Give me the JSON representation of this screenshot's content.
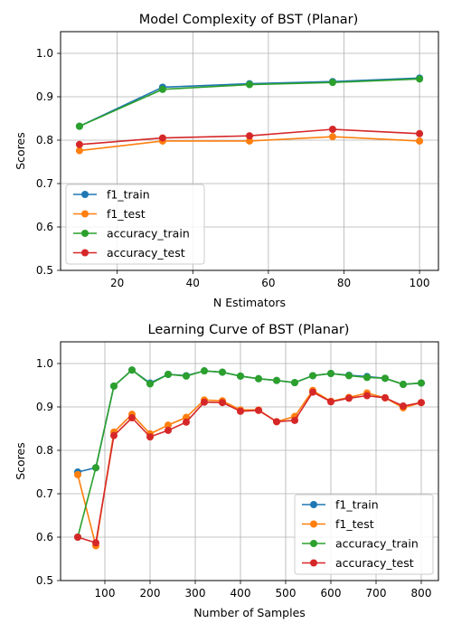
{
  "colors": {
    "f1_train": "#1f77b4",
    "f1_test": "#ff7f0e",
    "accuracy_train": "#2ca02c",
    "accuracy_test": "#d62728",
    "grid": "#b0b0b0",
    "axes": "#000000"
  },
  "chart_data": [
    {
      "type": "line",
      "title": "Model Complexity of BST (Planar)",
      "xlabel": "N Estimators",
      "ylabel": "Scores",
      "xlim": [
        5,
        105
      ],
      "ylim": [
        0.5,
        1.05
      ],
      "xticks": [
        20,
        40,
        60,
        80,
        100
      ],
      "yticks": [
        0.5,
        0.6,
        0.7,
        0.8,
        0.9,
        1.0
      ],
      "x_tick_labels": [
        "20",
        "40",
        "60",
        "80",
        "100"
      ],
      "y_tick_labels": [
        "0.5",
        "0.6",
        "0.7",
        "0.8",
        "0.9",
        "1.0"
      ],
      "grid": true,
      "legend_position": "lower-left",
      "x": [
        10,
        32,
        55,
        77,
        100
      ],
      "series": [
        {
          "name": "f1_train",
          "color_key": "f1_train",
          "values": [
            0.832,
            0.922,
            0.93,
            0.935,
            0.943
          ]
        },
        {
          "name": "f1_test",
          "color_key": "f1_test",
          "values": [
            0.776,
            0.798,
            0.798,
            0.808,
            0.798
          ]
        },
        {
          "name": "accuracy_train",
          "color_key": "accuracy_train",
          "values": [
            0.832,
            0.917,
            0.928,
            0.933,
            0.941
          ]
        },
        {
          "name": "accuracy_test",
          "color_key": "accuracy_test",
          "values": [
            0.79,
            0.805,
            0.81,
            0.825,
            0.815
          ]
        }
      ]
    },
    {
      "type": "line",
      "title": "Learning Curve of BST (Planar)",
      "xlabel": "Number of Samples",
      "ylabel": "Scores",
      "xlim": [
        2,
        838
      ],
      "ylim": [
        0.5,
        1.05
      ],
      "xticks": [
        100,
        200,
        300,
        400,
        500,
        600,
        700,
        800
      ],
      "yticks": [
        0.5,
        0.6,
        0.7,
        0.8,
        0.9,
        1.0
      ],
      "x_tick_labels": [
        "100",
        "200",
        "300",
        "400",
        "500",
        "600",
        "700",
        "800"
      ],
      "y_tick_labels": [
        "0.5",
        "0.6",
        "0.7",
        "0.8",
        "0.9",
        "1.0"
      ],
      "grid": true,
      "legend_position": "lower-right",
      "x": [
        40,
        80,
        120,
        160,
        200,
        240,
        280,
        320,
        360,
        400,
        440,
        480,
        520,
        560,
        600,
        640,
        680,
        720,
        760,
        800
      ],
      "series": [
        {
          "name": "f1_train",
          "color_key": "f1_train",
          "values": [
            0.75,
            0.76,
            0.948,
            0.985,
            0.955,
            0.975,
            0.972,
            0.983,
            0.98,
            0.971,
            0.965,
            0.961,
            0.956,
            0.972,
            0.977,
            0.973,
            0.97,
            0.966,
            0.952,
            0.955
          ]
        },
        {
          "name": "f1_test",
          "color_key": "f1_test",
          "values": [
            0.744,
            0.58,
            0.842,
            0.883,
            0.838,
            0.858,
            0.876,
            0.916,
            0.914,
            0.893,
            0.893,
            0.866,
            0.878,
            0.938,
            0.913,
            0.922,
            0.932,
            0.921,
            0.898,
            0.91
          ]
        },
        {
          "name": "accuracy_train",
          "color_key": "accuracy_train",
          "values": [
            0.6,
            0.76,
            0.948,
            0.985,
            0.953,
            0.975,
            0.971,
            0.983,
            0.98,
            0.971,
            0.965,
            0.961,
            0.956,
            0.972,
            0.977,
            0.972,
            0.968,
            0.966,
            0.952,
            0.955
          ]
        },
        {
          "name": "accuracy_test",
          "color_key": "accuracy_test",
          "values": [
            0.6,
            0.587,
            0.834,
            0.875,
            0.831,
            0.846,
            0.865,
            0.911,
            0.91,
            0.89,
            0.892,
            0.866,
            0.869,
            0.934,
            0.912,
            0.92,
            0.926,
            0.921,
            0.902,
            0.91
          ]
        }
      ]
    }
  ]
}
